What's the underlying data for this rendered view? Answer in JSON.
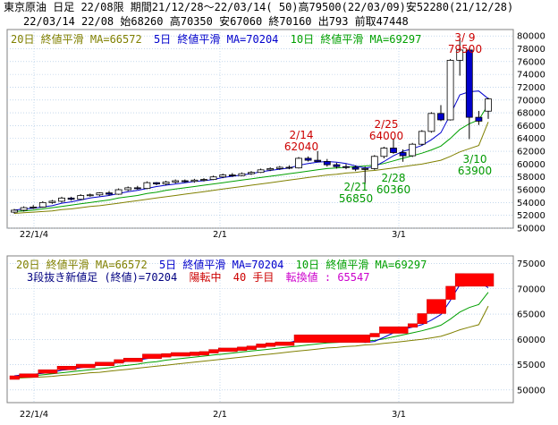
{
  "header": {
    "line1": "東京原油 日足 22/08限 期間21/12/28～22/03/14( 50)高79500(22/03/09)安52280(21/12/28)",
    "line2": "22/03/14 22/08 始68260 高70350 安67060 終70160 出793 前取47448"
  },
  "top_legend": {
    "ma20": "20日 終値平滑 MA=66572",
    "ma5": "5日 終値平滑 MA=70204",
    "ma10": "10日 終値平滑 MA=69297"
  },
  "bottom_legend": {
    "ma20": "20日 終値平滑 MA=66572",
    "ma5": "5日 終値平滑 MA=70204",
    "ma10": "10日 終値平滑 MA=69297",
    "line2_a": "3段抜き新値足 (終値)=70204",
    "line2_b": "陽転中",
    "line2_c": "40 手目",
    "line2_d": "転換値 : 65547"
  },
  "colors": {
    "ma20": "#808000",
    "ma5": "#0000cc",
    "ma10": "#00a000",
    "up_candle": "#ffffff",
    "down_candle": "#0000cc",
    "brick": "#ff0000",
    "grid": "#a0c0e0",
    "annotation_high": "#cc0000",
    "annotation_low": "#009900"
  },
  "chart_data": [
    {
      "type": "candlestick",
      "x_ticks": [
        "22/1/4",
        "2/1",
        "3/1"
      ],
      "y_ticks": [
        50000,
        52000,
        54000,
        56000,
        58000,
        60000,
        62000,
        64000,
        66000,
        68000,
        70000,
        72000,
        74000,
        76000,
        78000,
        80000
      ],
      "ylim": [
        50000,
        81000
      ],
      "annotations": [
        {
          "date": "2/14",
          "value": "62040",
          "kind": "high"
        },
        {
          "date": "2/21",
          "value": "56850",
          "kind": "low"
        },
        {
          "date": "2/25",
          "value": "64000",
          "kind": "high"
        },
        {
          "date": "2/28",
          "value": "60360",
          "kind": "low"
        },
        {
          "date": "3/ 9",
          "value": "79500",
          "kind": "high"
        },
        {
          "date": "3/10",
          "value": "63900",
          "kind": "low"
        }
      ],
      "candles": [
        [
          0,
          52500,
          53000,
          52280,
          52800
        ],
        [
          1,
          52800,
          53400,
          52600,
          53200
        ],
        [
          2,
          53200,
          53600,
          53000,
          53300
        ],
        [
          3,
          53300,
          54200,
          53200,
          54000
        ],
        [
          4,
          54000,
          54400,
          53800,
          54200
        ],
        [
          5,
          54200,
          54900,
          54000,
          54700
        ],
        [
          6,
          54700,
          54900,
          54300,
          54500
        ],
        [
          7,
          54500,
          55300,
          54400,
          55100
        ],
        [
          8,
          55100,
          55400,
          54900,
          55200
        ],
        [
          9,
          55200,
          55600,
          55000,
          55500
        ],
        [
          10,
          55500,
          55800,
          55100,
          55300
        ],
        [
          11,
          55300,
          56200,
          55200,
          56000
        ],
        [
          12,
          56000,
          56500,
          55800,
          56300
        ],
        [
          13,
          56300,
          56600,
          56000,
          56200
        ],
        [
          14,
          56200,
          57300,
          56100,
          57100
        ],
        [
          15,
          57100,
          57200,
          56700,
          56900
        ],
        [
          16,
          56900,
          57400,
          56700,
          57200
        ],
        [
          17,
          57200,
          57600,
          57000,
          57400
        ],
        [
          18,
          57400,
          57600,
          57100,
          57300
        ],
        [
          19,
          57300,
          57700,
          57100,
          57500
        ],
        [
          20,
          57500,
          57800,
          57300,
          57600
        ],
        [
          21,
          57600,
          58200,
          57500,
          58000
        ],
        [
          22,
          58000,
          58500,
          57800,
          58300
        ],
        [
          23,
          58300,
          58600,
          58000,
          58200
        ],
        [
          24,
          58200,
          58700,
          58100,
          58500
        ],
        [
          25,
          58500,
          58900,
          58300,
          58700
        ],
        [
          26,
          58700,
          59300,
          58600,
          59100
        ],
        [
          27,
          59100,
          59500,
          58900,
          59300
        ],
        [
          28,
          59300,
          59700,
          59100,
          59500
        ],
        [
          29,
          59500,
          59800,
          59200,
          59400
        ],
        [
          30,
          59400,
          61100,
          59300,
          60900
        ],
        [
          31,
          60900,
          61200,
          60400,
          60600
        ],
        [
          32,
          60600,
          62040,
          60300,
          60400
        ],
        [
          33,
          60400,
          60800,
          59600,
          59900
        ],
        [
          34,
          59900,
          60200,
          59300,
          59600
        ],
        [
          35,
          59600,
          60000,
          59200,
          59500
        ],
        [
          36,
          59500,
          59800,
          58900,
          59200
        ],
        [
          37,
          59200,
          59600,
          56850,
          59300
        ],
        [
          38,
          59300,
          61400,
          59100,
          61200
        ],
        [
          39,
          61200,
          62700,
          60900,
          62500
        ],
        [
          40,
          62500,
          64000,
          61600,
          61800
        ],
        [
          41,
          61800,
          62300,
          60360,
          61300
        ],
        [
          42,
          61300,
          63300,
          61100,
          63100
        ],
        [
          43,
          63100,
          65300,
          62900,
          65100
        ],
        [
          44,
          65100,
          68100,
          64900,
          67900
        ],
        [
          45,
          67900,
          69200,
          66700,
          66900
        ],
        [
          46,
          66900,
          76400,
          66800,
          76200
        ],
        [
          47,
          76200,
          79500,
          73800,
          77800
        ],
        [
          48,
          77800,
          78100,
          63900,
          67300
        ],
        [
          49,
          67300,
          68300,
          66100,
          66700
        ],
        [
          50,
          68260,
          70350,
          67060,
          70160
        ]
      ],
      "ma5": [
        52800,
        53000,
        53100,
        53300,
        53500,
        53900,
        54100,
        54400,
        54700,
        54900,
        55100,
        55400,
        55700,
        55900,
        56200,
        56500,
        56700,
        56900,
        57100,
        57300,
        57400,
        57600,
        57900,
        58100,
        58300,
        58500,
        58800,
        59000,
        59200,
        59400,
        59800,
        60100,
        60300,
        60400,
        60300,
        60100,
        59700,
        59400,
        59600,
        60400,
        61300,
        62000,
        62400,
        62900,
        63800,
        64900,
        67700,
        70800,
        71300,
        71400,
        70200
      ],
      "ma10": [
        52600,
        52700,
        52800,
        53000,
        53200,
        53400,
        53600,
        53800,
        54000,
        54200,
        54400,
        54700,
        54900,
        55100,
        55400,
        55600,
        55900,
        56100,
        56300,
        56500,
        56700,
        56900,
        57100,
        57300,
        57500,
        57700,
        57900,
        58100,
        58300,
        58500,
        58700,
        58900,
        59100,
        59300,
        59400,
        59500,
        59600,
        59700,
        59800,
        60100,
        60500,
        60900,
        61300,
        61700,
        62200,
        62800,
        64000,
        65400,
        66300,
        66900,
        69300
      ],
      "ma20": [
        52300,
        52400,
        52500,
        52600,
        52700,
        52900,
        53000,
        53200,
        53400,
        53500,
        53700,
        53900,
        54100,
        54300,
        54500,
        54700,
        54900,
        55100,
        55300,
        55500,
        55700,
        55900,
        56100,
        56300,
        56500,
        56700,
        56900,
        57100,
        57300,
        57500,
        57700,
        57900,
        58100,
        58300,
        58400,
        58600,
        58700,
        58900,
        59000,
        59200,
        59400,
        59600,
        59800,
        60000,
        60300,
        60600,
        61200,
        61900,
        62400,
        62900,
        66572
      ]
    },
    {
      "type": "bar",
      "x_ticks": [
        "22/1/4",
        "2/1",
        "3/1"
      ],
      "y_ticks": [
        50000,
        55000,
        60000,
        65000,
        70000,
        75000
      ],
      "ylim": [
        47500,
        76500
      ],
      "bricks": [
        [
          0,
          52300,
          52800
        ],
        [
          1,
          52800,
          53200
        ],
        [
          3,
          53300,
          54000
        ],
        [
          5,
          54200,
          54700
        ],
        [
          7,
          54500,
          55100
        ],
        [
          9,
          55200,
          55500
        ],
        [
          11,
          55300,
          56000
        ],
        [
          12,
          56000,
          56300
        ],
        [
          14,
          56200,
          57100
        ],
        [
          16,
          56900,
          57200
        ],
        [
          17,
          57200,
          57400
        ],
        [
          19,
          57300,
          57500
        ],
        [
          20,
          57500,
          57600
        ],
        [
          21,
          57600,
          58000
        ],
        [
          22,
          58000,
          58300
        ],
        [
          24,
          58200,
          58500
        ],
        [
          25,
          58500,
          58700
        ],
        [
          26,
          58700,
          59100
        ],
        [
          27,
          59100,
          59300
        ],
        [
          28,
          59300,
          59500
        ],
        [
          30,
          59400,
          60900
        ],
        [
          38,
          60900,
          61200
        ],
        [
          39,
          61200,
          62500
        ],
        [
          42,
          62500,
          63100
        ],
        [
          43,
          63100,
          65100
        ],
        [
          44,
          65100,
          67900
        ],
        [
          46,
          67900,
          70500
        ],
        [
          47,
          70500,
          73000
        ]
      ],
      "last_brick_value": 70204
    }
  ]
}
